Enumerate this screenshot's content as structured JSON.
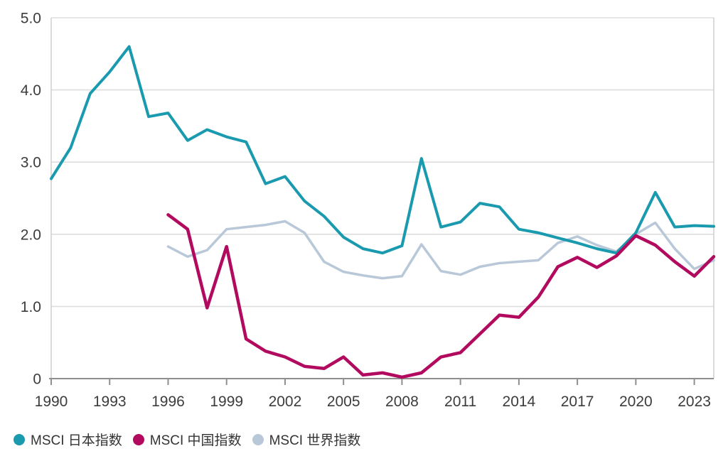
{
  "chart_data": {
    "type": "line",
    "title": "",
    "xlabel": "",
    "ylabel": "",
    "x": [
      1990,
      1991,
      1992,
      1993,
      1994,
      1995,
      1996,
      1997,
      1998,
      1999,
      2000,
      2001,
      2002,
      2003,
      2004,
      2005,
      2006,
      2007,
      2008,
      2009,
      2010,
      2011,
      2012,
      2013,
      2014,
      2015,
      2016,
      2017,
      2018,
      2019,
      2020,
      2021,
      2022,
      2023,
      2024
    ],
    "series": [
      {
        "key": "japan",
        "name": "MSCI 日本指数",
        "color": "#1a9aae",
        "line_width": 4,
        "values": [
          2.77,
          3.2,
          3.95,
          4.25,
          4.6,
          3.63,
          3.68,
          3.3,
          3.45,
          3.35,
          3.28,
          2.7,
          2.8,
          2.46,
          2.25,
          1.96,
          1.8,
          1.74,
          1.84,
          3.05,
          2.1,
          2.17,
          2.43,
          2.38,
          2.07,
          2.02,
          1.95,
          1.88,
          1.8,
          1.74,
          2.02,
          2.58,
          2.1,
          2.12,
          2.11
        ]
      },
      {
        "key": "china",
        "name": "MSCI 中国指数",
        "color": "#b20a5e",
        "line_width": 4.5,
        "values": [
          null,
          null,
          null,
          null,
          null,
          null,
          2.27,
          2.07,
          0.98,
          1.83,
          0.55,
          0.38,
          0.3,
          0.17,
          0.14,
          0.3,
          0.05,
          0.08,
          0.02,
          0.08,
          0.3,
          0.36,
          0.62,
          0.88,
          0.85,
          1.13,
          1.55,
          1.68,
          1.54,
          1.7,
          1.98,
          1.85,
          1.62,
          1.42,
          1.69
        ]
      },
      {
        "key": "world",
        "name": "MSCI 世界指数",
        "color": "#b9c8d8",
        "line_width": 3.5,
        "values": [
          null,
          null,
          null,
          null,
          null,
          null,
          1.83,
          1.69,
          1.78,
          2.07,
          2.1,
          2.13,
          2.18,
          2.02,
          1.62,
          1.48,
          1.43,
          1.39,
          1.42,
          1.86,
          1.49,
          1.44,
          1.55,
          1.6,
          1.62,
          1.64,
          1.88,
          1.97,
          1.85,
          1.76,
          2.0,
          2.16,
          1.8,
          1.52,
          1.64
        ]
      }
    ],
    "ylim": [
      0,
      5
    ],
    "yticks": [
      5,
      4,
      3,
      2,
      1,
      0
    ],
    "ytick_labels": [
      "5.0",
      "4.0",
      "3.0",
      "2.0",
      "1.0",
      "0"
    ],
    "xticks": [
      1990,
      1993,
      1996,
      1999,
      2002,
      2005,
      2008,
      2011,
      2014,
      2017,
      2020,
      2023
    ],
    "grid": "horizontal",
    "legend_position": "bottom-left",
    "grid_color": "#dedede",
    "spine_color": "#d2d2d2",
    "axis_color": "#8f8f8f",
    "text_color": "#3c3c3c"
  }
}
